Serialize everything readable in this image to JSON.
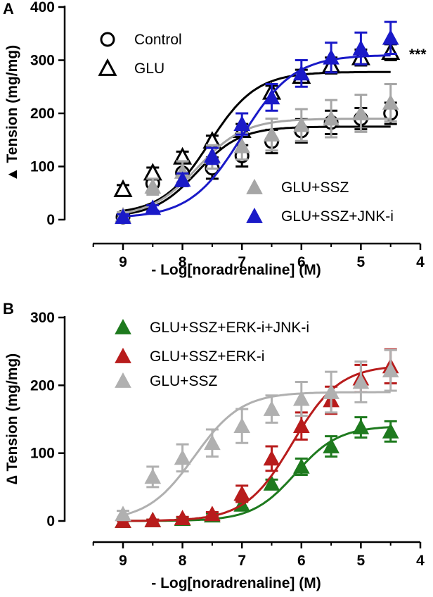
{
  "chart_data": [
    {
      "panel": "A",
      "type": "scatter",
      "xlabel": "- Log[noradrenaline] (M)",
      "ylabel": "Tension (mg/mg)",
      "ylabel_symbol": "▲",
      "xlim": [
        9.5,
        4
      ],
      "ylim": [
        0,
        400
      ],
      "x_reversed": true,
      "x_ticks": [
        9,
        8,
        7,
        6,
        5,
        4
      ],
      "y_ticks": [
        0,
        100,
        200,
        300,
        400
      ],
      "grid": false,
      "legend_position": "top-left and bottom-right",
      "annotation": "***",
      "series": [
        {
          "name": "Control",
          "marker": "open-circle",
          "color": "#000000",
          "x": [
            9,
            8.5,
            8,
            7.5,
            7,
            6.5,
            6,
            5.5,
            5,
            4.5
          ],
          "y": [
            5,
            68,
            88,
            97,
            120,
            147,
            167,
            183,
            190,
            200
          ],
          "err": [
            8,
            15,
            20,
            20,
            20,
            22,
            22,
            22,
            20,
            20
          ],
          "fit": {
            "bottom": 5,
            "top": 175,
            "logEC50": -7.75,
            "hill": 1.2
          }
        },
        {
          "name": "GLU",
          "marker": "open-triangle",
          "color": "#000000",
          "x": [
            9,
            8.5,
            8,
            7.5,
            7,
            6.5,
            6,
            5.5,
            5,
            4.5
          ],
          "y": [
            57,
            88,
            118,
            148,
            168,
            240,
            270,
            290,
            305,
            315
          ],
          "err": [
            8,
            10,
            10,
            10,
            12,
            12,
            12,
            15,
            15,
            15
          ],
          "fit": {
            "bottom": 10,
            "top": 278,
            "logEC50": -7.55,
            "hill": 1.1
          }
        },
        {
          "name": "GLU+SSZ",
          "marker": "filled-triangle",
          "color": "#a6a6a6",
          "x": [
            9,
            8.5,
            8,
            7.5,
            7,
            6.5,
            6,
            5.5,
            5,
            4.5
          ],
          "y": [
            8,
            62,
            90,
            118,
            138,
            160,
            178,
            190,
            200,
            220
          ],
          "err": [
            6,
            15,
            20,
            22,
            25,
            30,
            30,
            35,
            35,
            35
          ],
          "fit": {
            "bottom": 5,
            "top": 190,
            "logEC50": -7.75,
            "hill": 1.1
          }
        },
        {
          "name": "GLU+SSZ+JNK-i",
          "marker": "filled-triangle",
          "color": "#1a1ac8",
          "x": [
            9,
            8.5,
            8,
            7.5,
            7,
            6.5,
            6,
            5.5,
            5,
            4.5
          ],
          "y": [
            5,
            22,
            75,
            120,
            180,
            230,
            275,
            305,
            322,
            342
          ],
          "err": [
            5,
            5,
            12,
            15,
            20,
            25,
            25,
            28,
            30,
            30
          ],
          "fit": {
            "bottom": 3,
            "top": 310,
            "logEC50": -7.0,
            "hill": 1.0
          }
        }
      ]
    },
    {
      "panel": "B",
      "type": "scatter",
      "xlabel": "- Log[noradrenaline] (M)",
      "ylabel": "Tension (mg/mg)",
      "ylabel_symbol": "∆",
      "xlim": [
        9.5,
        4
      ],
      "ylim": [
        0,
        300
      ],
      "x_reversed": true,
      "x_ticks": [
        9,
        8,
        7,
        6,
        5,
        4
      ],
      "y_ticks": [
        0,
        100,
        200,
        300
      ],
      "grid": false,
      "legend_position": "top",
      "series": [
        {
          "name": "GLU+SSZ+ERK-i+JNK-i",
          "marker": "filled-triangle",
          "color": "#1e7a1e",
          "x": [
            9,
            8.5,
            8,
            7.5,
            7,
            6.5,
            6,
            5.5,
            5,
            4.5
          ],
          "y": [
            0,
            1,
            3,
            8,
            24,
            55,
            80,
            110,
            138,
            132
          ],
          "err": [
            1,
            1,
            2,
            3,
            5,
            6,
            12,
            15,
            15,
            15
          ],
          "fit": {
            "bottom": 0,
            "top": 140,
            "logEC50": -6.1,
            "hill": 1.2
          }
        },
        {
          "name": "GLU+SSZ+ERK-i",
          "marker": "filled-triangle",
          "color": "#b81c1c",
          "x": [
            9,
            8.5,
            8,
            7.5,
            7,
            6.5,
            6,
            5.5,
            5,
            4.5
          ],
          "y": [
            0,
            1,
            4,
            10,
            40,
            92,
            140,
            178,
            210,
            228
          ],
          "err": [
            1,
            1,
            2,
            3,
            12,
            18,
            20,
            20,
            20,
            25
          ],
          "fit": {
            "bottom": 0,
            "top": 230,
            "logEC50": -6.15,
            "hill": 1.1
          }
        },
        {
          "name": "GLU+SSZ",
          "marker": "filled-triangle",
          "color": "#b0b0b0",
          "x": [
            9,
            8.5,
            8,
            7.5,
            7,
            6.5,
            6,
            5.5,
            5,
            4.5
          ],
          "y": [
            10,
            65,
            93,
            115,
            140,
            165,
            180,
            190,
            205,
            222
          ],
          "err": [
            5,
            15,
            20,
            20,
            25,
            20,
            25,
            30,
            30,
            30
          ],
          "fit": {
            "bottom": 0,
            "top": 190,
            "logEC50": -7.8,
            "hill": 1.1
          }
        }
      ]
    }
  ]
}
